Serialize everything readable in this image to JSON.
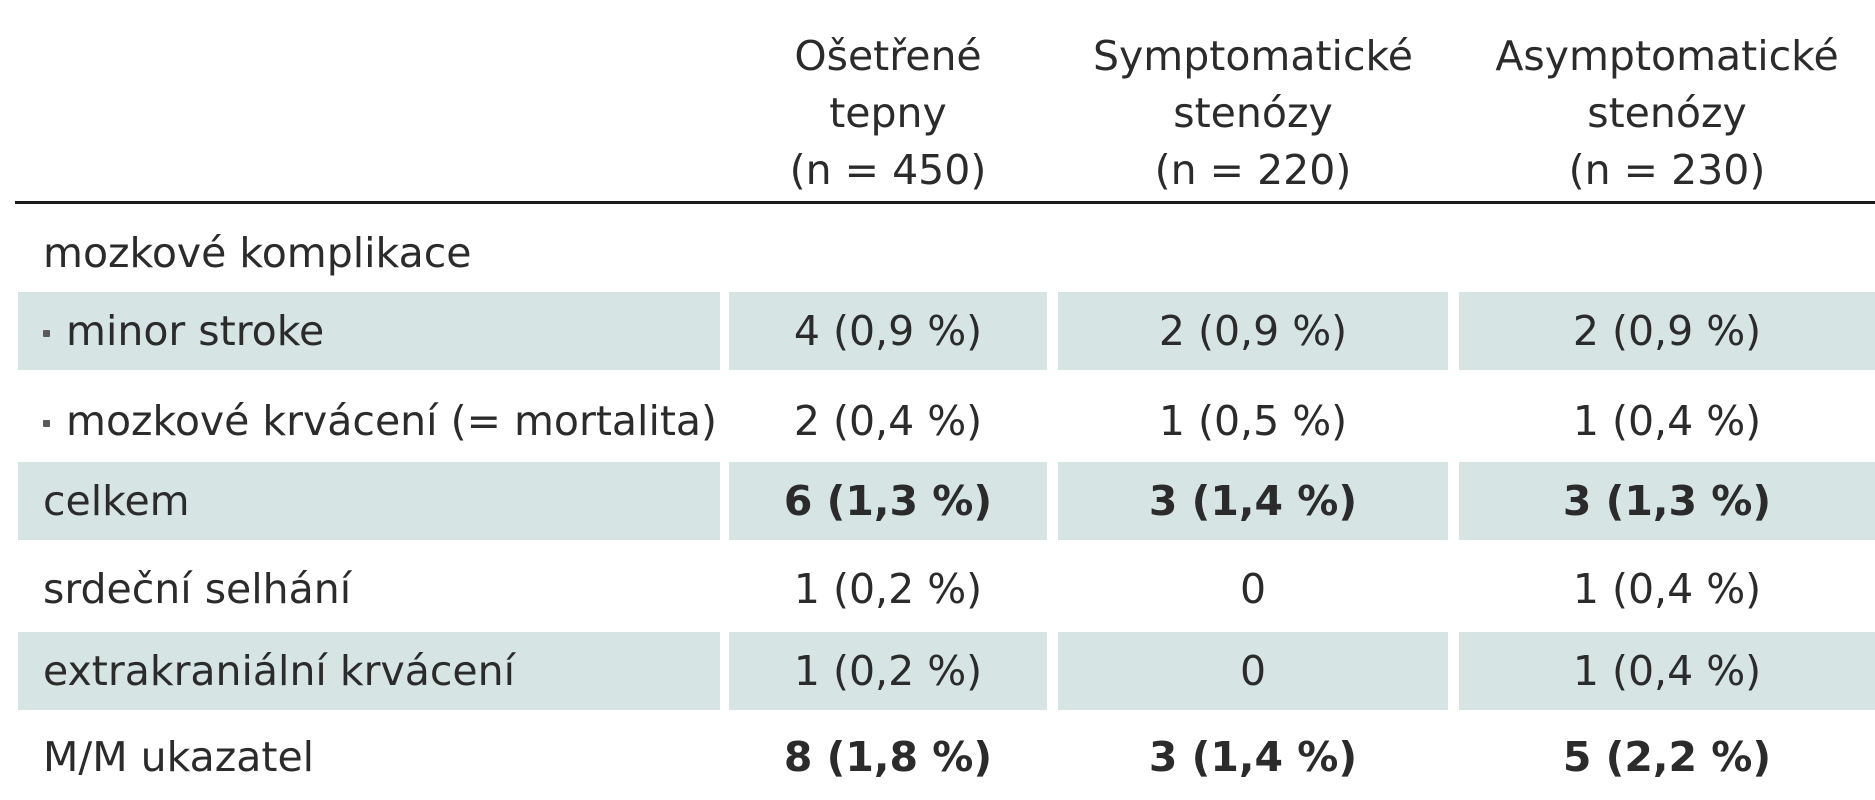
{
  "table": {
    "columns": [
      {
        "line1": "Ošetřené",
        "line2": "tepny",
        "line3": "(n = 450)"
      },
      {
        "line1": "Symptomatické",
        "line2": "stenózy",
        "line3": "(n = 220)"
      },
      {
        "line1": "Asymptomatické",
        "line2": "stenózy",
        "line3": "(n = 230)"
      }
    ],
    "rows": [
      {
        "label": "mozkové komplikace",
        "bullet": false,
        "bold": false,
        "shaded": false,
        "values": [
          "",
          "",
          ""
        ]
      },
      {
        "label": "minor stroke",
        "bullet": true,
        "bold": false,
        "shaded": true,
        "values": [
          "4 (0,9 %)",
          "2 (0,9 %)",
          "2 (0,9 %)"
        ]
      },
      {
        "label": "mozkové krvácení (= mortalita)",
        "bullet": true,
        "bold": false,
        "shaded": false,
        "values": [
          "2 (0,4 %)",
          "1 (0,5 %)",
          "1 (0,4 %)"
        ]
      },
      {
        "label": "celkem",
        "bullet": false,
        "bold": true,
        "shaded": true,
        "values": [
          "6 (1,3 %)",
          "3 (1,4 %)",
          "3 (1,3 %)"
        ]
      },
      {
        "label": "srdeční selhání",
        "bullet": false,
        "bold": false,
        "shaded": false,
        "values": [
          "1 (0,2 %)",
          "0",
          "1 (0,4 %)"
        ]
      },
      {
        "label": "extrakraniální krvácení",
        "bullet": false,
        "bold": false,
        "shaded": true,
        "values": [
          "1 (0,2 %)",
          "0",
          "1 (0,4 %)"
        ]
      },
      {
        "label": "M/M ukazatel",
        "bullet": false,
        "bold": true,
        "shaded": false,
        "values": [
          "8 (1,8 %)",
          "3 (1,4 %)",
          "5 (2,2 %)"
        ]
      }
    ]
  }
}
